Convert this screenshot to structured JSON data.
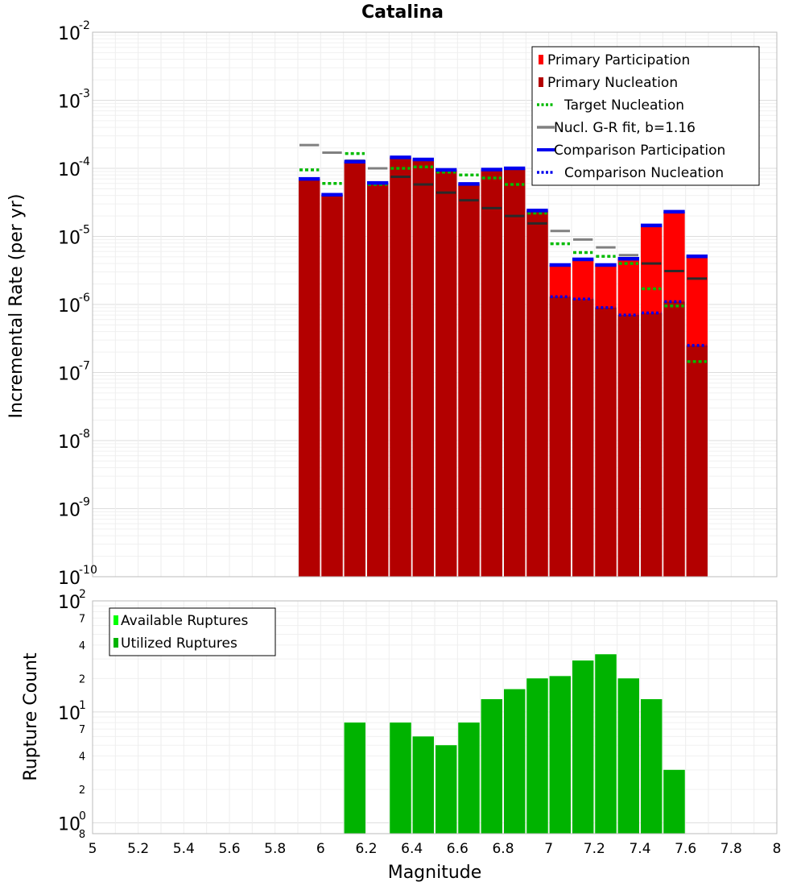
{
  "chart_data": [
    {
      "type": "bar",
      "title": "Catalina",
      "xlabel": "",
      "ylabel": "Incremental Rate (per yr)",
      "y_scale": "log",
      "xlim": [
        5,
        8
      ],
      "ylim": [
        1e-10,
        0.01
      ],
      "y_tick_exponents": [
        -10,
        -9,
        -8,
        -7,
        -6,
        -5,
        -4,
        -3,
        -2
      ],
      "grid": true,
      "legend_position": "top-right",
      "legend": [
        {
          "label": "Primary Participation",
          "color": "#ff0000",
          "style": "bar"
        },
        {
          "label": "Primary Nucleation",
          "color": "#b30000",
          "style": "bar"
        },
        {
          "label": "Target Nucleation",
          "color": "#00bb00",
          "style": "dotted"
        },
        {
          "label": "Nucl. G-R fit, b=1.16",
          "color": "#808080",
          "style": "solid"
        },
        {
          "label": "Comparison Participation",
          "color": "#0000ee",
          "style": "thick"
        },
        {
          "label": "Comparison Nucleation",
          "color": "#0000ee",
          "style": "dotted"
        }
      ],
      "bin_width": 0.1,
      "x": [
        5.95,
        6.05,
        6.15,
        6.25,
        6.35,
        6.45,
        6.55,
        6.65,
        6.75,
        6.85,
        6.95,
        7.05,
        7.15,
        7.25,
        7.35,
        7.45,
        7.55,
        7.65
      ],
      "series": [
        {
          "name": "Primary Participation",
          "values": [
            7e-05,
            4.1e-05,
            0.000125,
            6.1e-05,
            0.000145,
            0.000135,
            9.5e-05,
            5.9e-05,
            9.6e-05,
            0.0001,
            2.4e-05,
            3.8e-06,
            4.6e-06,
            3.8e-06,
            4.7e-06,
            1.45e-05,
            2.3e-05,
            5.1e-06
          ]
        },
        {
          "name": "Primary Nucleation",
          "values": [
            7e-05,
            4.1e-05,
            0.000125,
            6.1e-05,
            0.000145,
            0.000135,
            9.5e-05,
            5.9e-05,
            9.6e-05,
            0.0001,
            2.4e-05,
            1.3e-06,
            1.2e-06,
            9e-07,
            7e-07,
            7.5e-07,
            1.1e-06,
            2.5e-07
          ]
        },
        {
          "name": "Target Nucleation",
          "values": [
            9.5e-05,
            6e-05,
            0.000165,
            5.8e-05,
            0.0001,
            0.000105,
            8.8e-05,
            8e-05,
            7.2e-05,
            5.8e-05,
            2.2e-05,
            7.8e-06,
            5.8e-06,
            5.1e-06,
            4e-06,
            1.7e-06,
            9.5e-07,
            1.45e-07
          ]
        },
        {
          "name": "Nucl. G-R fit, b=1.16",
          "values": [
            0.00022,
            0.00017,
            0.00013,
            0.0001,
            7.5e-05,
            5.8e-05,
            4.4e-05,
            3.4e-05,
            2.6e-05,
            2e-05,
            1.55e-05,
            1.2e-05,
            9e-06,
            6.9e-06,
            5.3e-06,
            4e-06,
            3.1e-06,
            2.4e-06
          ]
        },
        {
          "name": "Comparison Participation",
          "values": [
            7e-05,
            4.1e-05,
            0.000125,
            6.1e-05,
            0.000145,
            0.000135,
            9.5e-05,
            5.9e-05,
            9.6e-05,
            0.0001,
            2.4e-05,
            3.8e-06,
            4.6e-06,
            3.8e-06,
            4.7e-06,
            1.45e-05,
            2.3e-05,
            5.1e-06
          ]
        },
        {
          "name": "Comparison Nucleation",
          "values": [
            7e-05,
            4.1e-05,
            0.000125,
            6.1e-05,
            0.000145,
            0.000135,
            9.5e-05,
            5.9e-05,
            9.6e-05,
            0.0001,
            2.4e-05,
            1.3e-06,
            1.2e-06,
            9e-07,
            7e-07,
            7.5e-07,
            1.1e-06,
            2.5e-07
          ]
        }
      ]
    },
    {
      "type": "bar",
      "title": "",
      "xlabel": "Magnitude",
      "ylabel": "Rupture Count",
      "y_scale": "log",
      "xlim": [
        5,
        8
      ],
      "ylim": [
        0.8,
        100
      ],
      "x_ticks": [
        "5",
        "5.2",
        "5.4",
        "5.6",
        "5.8",
        "6",
        "6.2",
        "6.4",
        "6.6",
        "6.8",
        "7",
        "7.2",
        "7.4",
        "7.6",
        "7.8",
        "8"
      ],
      "y_major_exponents": [
        0,
        1,
        2
      ],
      "y_minor_ticks": [
        {
          "label": "8",
          "value": 0.8
        },
        {
          "label": "2",
          "value": 2
        },
        {
          "label": "4",
          "value": 4
        },
        {
          "label": "7",
          "value": 7
        },
        {
          "label": "2",
          "value": 20
        },
        {
          "label": "4",
          "value": 40
        },
        {
          "label": "7",
          "value": 70
        }
      ],
      "grid": true,
      "legend_position": "top-left",
      "legend": [
        {
          "label": "Available Ruptures",
          "color": "#00ff00",
          "style": "bar"
        },
        {
          "label": "Utilized Ruptures",
          "color": "#00b300",
          "style": "bar"
        }
      ],
      "bin_width": 0.1,
      "x": [
        6.15,
        6.35,
        6.45,
        6.55,
        6.65,
        6.75,
        6.85,
        6.95,
        7.05,
        7.15,
        7.25,
        7.35,
        7.45,
        7.55
      ],
      "series": [
        {
          "name": "Available Ruptures",
          "values": [
            8,
            8,
            6,
            5,
            8,
            13,
            16,
            20,
            21,
            29,
            33,
            20,
            13,
            3
          ]
        },
        {
          "name": "Utilized Ruptures",
          "values": [
            8,
            8,
            6,
            5,
            8,
            13,
            16,
            20,
            21,
            29,
            33,
            20,
            13,
            3
          ]
        }
      ]
    }
  ]
}
